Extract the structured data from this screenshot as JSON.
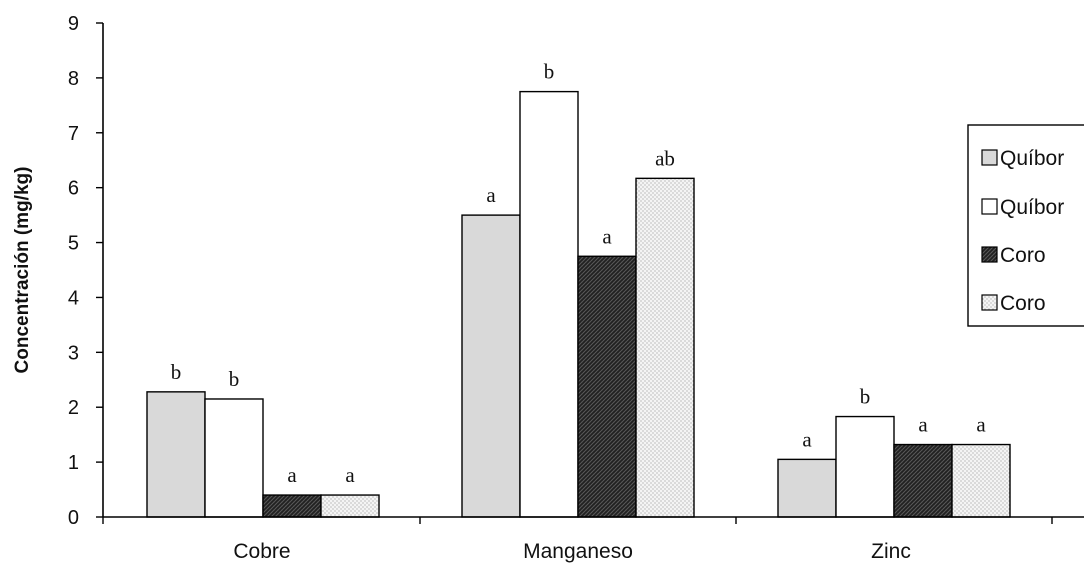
{
  "chart_data": {
    "type": "bar",
    "title": "",
    "xlabel": "",
    "ylabel": "Concentración (mg/kg)",
    "ylim": [
      0,
      9
    ],
    "yticks": [
      0,
      1,
      2,
      3,
      4,
      5,
      6,
      7,
      8,
      9
    ],
    "categories": [
      "Cobre",
      "Manganeso",
      "Zinc"
    ],
    "grid": false,
    "legend_position": "right",
    "series": [
      {
        "name": "Quíbor",
        "values": [
          2.28,
          5.5,
          1.05
        ],
        "significance": [
          "b",
          "a",
          "a"
        ],
        "fill": "#d9d9d9",
        "pattern": "solid"
      },
      {
        "name": "Quíbor",
        "values": [
          2.15,
          7.75,
          1.83
        ],
        "significance": [
          "b",
          "b",
          "b"
        ],
        "fill": "#ffffff",
        "pattern": "solid"
      },
      {
        "name": "Coro",
        "values": [
          0.4,
          4.75,
          1.32
        ],
        "significance": [
          "a",
          "a",
          "a"
        ],
        "fill": "#2a2a2a",
        "pattern": "crosshatch-dark"
      },
      {
        "name": "Coro",
        "values": [
          0.4,
          6.17,
          1.32
        ],
        "significance": [
          "a",
          "ab",
          "a"
        ],
        "fill": "#f2f2f2",
        "pattern": "dots-light"
      }
    ]
  }
}
